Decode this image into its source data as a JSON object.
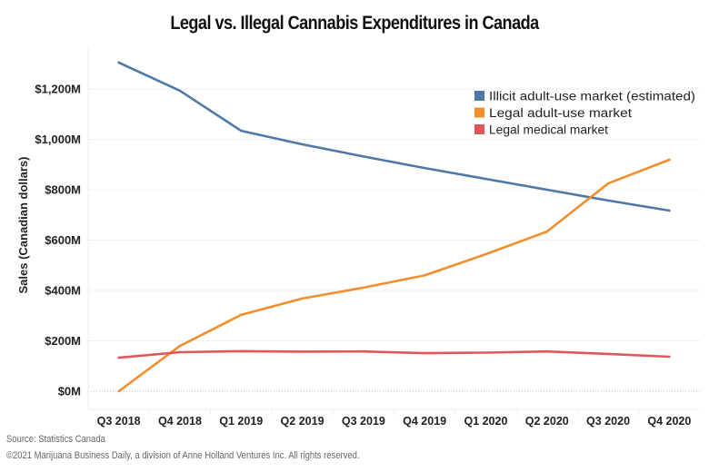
{
  "chart_data": {
    "type": "line",
    "title": "Legal vs. Illegal Cannabis Expenditures in Canada",
    "xlabel": "",
    "ylabel": "Sales (Canadian dollars)",
    "categories": [
      "Q3 2018",
      "Q4 2018",
      "Q1 2019",
      "Q2 2019",
      "Q3 2019",
      "Q4 2019",
      "Q1 2020",
      "Q2 2020",
      "Q3 2020",
      "Q4 2020"
    ],
    "ylim": [
      -70,
      1380
    ],
    "yticks": [
      0,
      200,
      400,
      600,
      800,
      1000,
      1200
    ],
    "ytick_labels": [
      "$0M",
      "$200M",
      "$400M",
      "$600M",
      "$800M",
      "$1,000M",
      "$1,200M"
    ],
    "grid": true,
    "legend_position": "top-right",
    "series": [
      {
        "name": "Illicit adult-use market (estimated)",
        "color": "#4e79a7",
        "values": [
          1305,
          1193,
          1034,
          980,
          932,
          886,
          843,
          800,
          757,
          717
        ]
      },
      {
        "name": "Legal adult-use market",
        "color": "#f28e2b",
        "values": [
          0,
          180,
          303,
          368,
          411,
          460,
          544,
          634,
          825,
          919
        ]
      },
      {
        "name": "Legal medical market",
        "color": "#e15759",
        "values": [
          133,
          155,
          159,
          157,
          158,
          151,
          153,
          158,
          148,
          137
        ]
      }
    ]
  },
  "footer": {
    "source": "Source: Statistics Canada",
    "copyright": "©2021 Marijuana Business Daily, a division of Anne Holland Ventures Inc. All rights reserved."
  }
}
